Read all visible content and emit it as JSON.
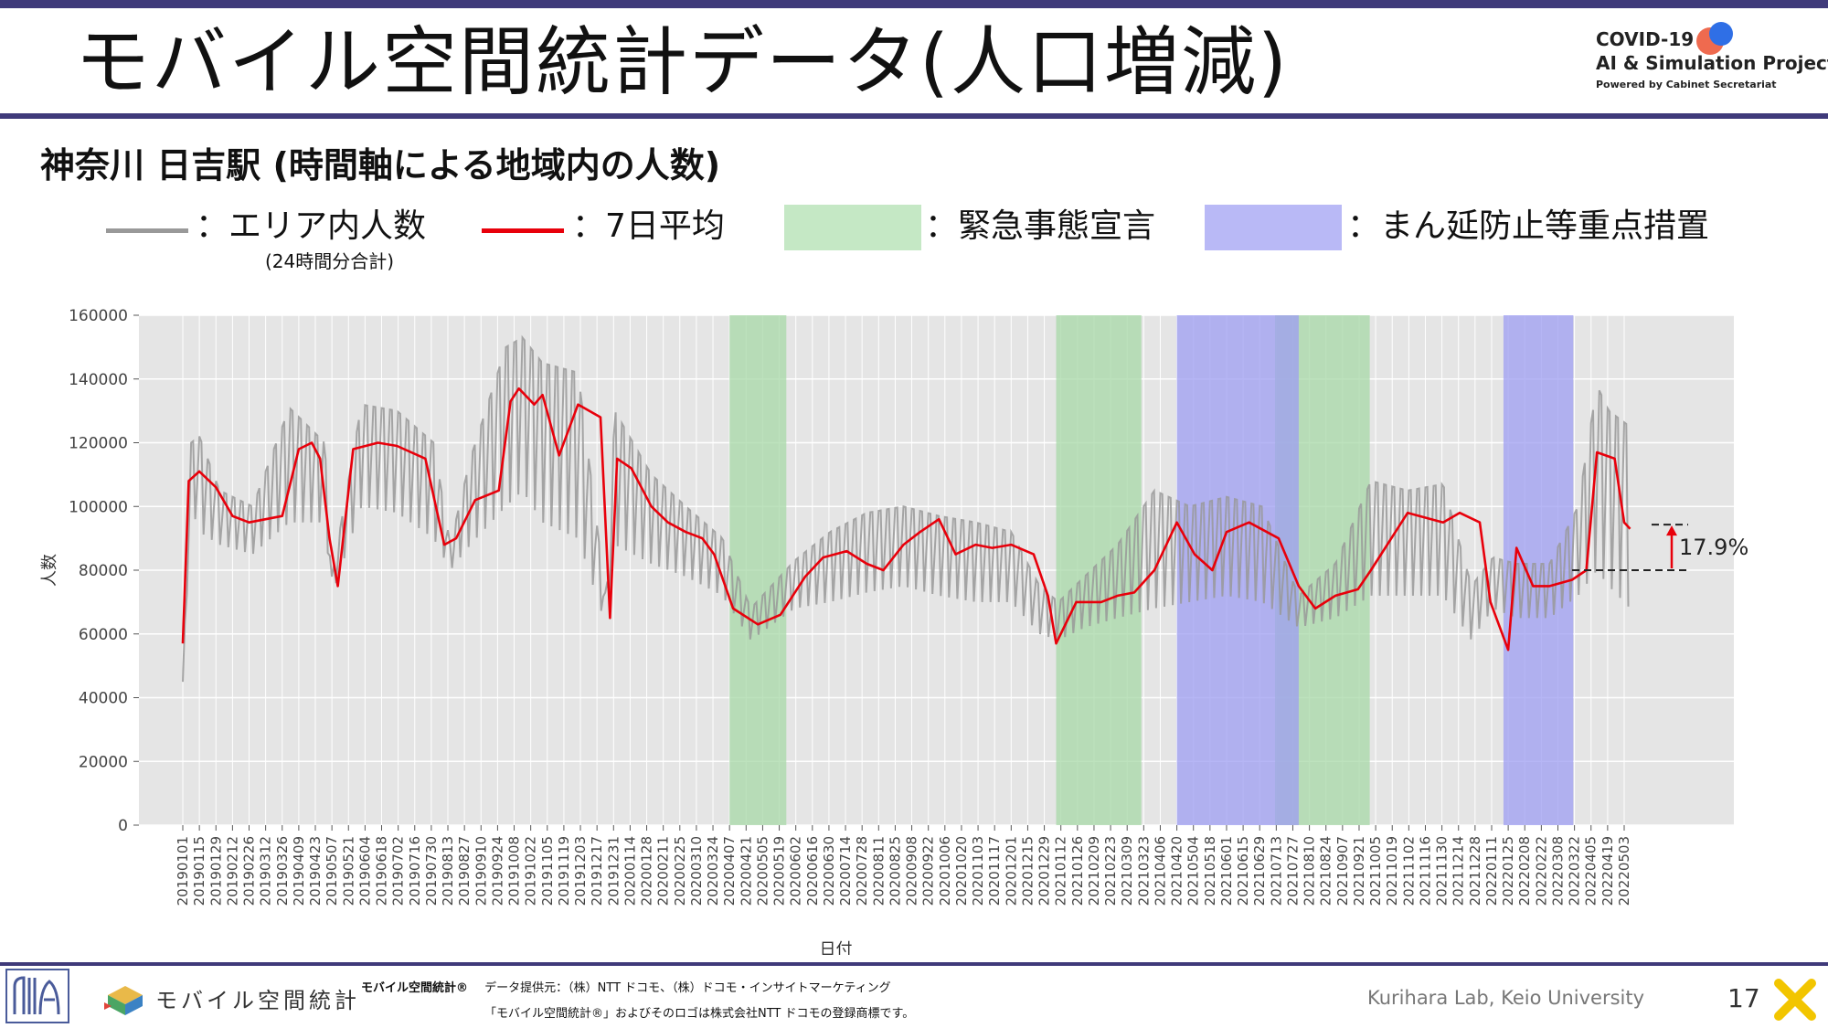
{
  "slide": {
    "title": "モバイル空間統計データ(人口増減)",
    "subtitle": "神奈川 日吉駅 (時間軸による地域内の人数)",
    "page_number": "17"
  },
  "logo": {
    "line1": "COVID-19",
    "line2": "AI & Simulation Project",
    "line3": "Powered by Cabinet Secretariat"
  },
  "legend": {
    "raw_label": "：エリア内人数",
    "raw_sublabel": "(24時間分合計)",
    "avg_label": "：7日平均",
    "emergency_label": "：緊急事態宣言",
    "semi_label": "：まん延防止等重点措置"
  },
  "footer": {
    "brand": "モバイル空間統計",
    "note_line1_bold": "モバイル空間統計®",
    "note_line1": "データ提供元：（株）NTT ドコモ、（株）ドコモ・インサイトマーケティング",
    "note_line2": "「モバイル空間統計®」およびそのロゴは株式会社NTT ドコモの登録商標です。",
    "lab": "Kurihara Lab, Keio University"
  },
  "colors": {
    "accent": "#3f3a7a",
    "raw_series": "#999999",
    "avg_series": "#e8000b",
    "emergency": "#a7d8a7",
    "semi": "#9e9ef2",
    "plot_bg": "#e5e5e5"
  },
  "chart_data": {
    "type": "line",
    "xlabel": "日付",
    "ylabel": "人数",
    "ylim": [
      0,
      160000
    ],
    "yticks": [
      0,
      20000,
      40000,
      60000,
      80000,
      100000,
      120000,
      140000,
      160000
    ],
    "ytick_labels": [
      "0",
      "20000",
      "40000",
      "60000",
      "80000",
      "100000",
      "120000",
      "140000",
      "160000"
    ],
    "x_start": "20190101",
    "x_end": "20220508",
    "x_tick_labels": [
      "20190101",
      "20190115",
      "20190129",
      "20190212",
      "20190226",
      "20190312",
      "20190326",
      "20190409",
      "20190423",
      "20190507",
      "20190521",
      "20190604",
      "20190618",
      "20190702",
      "20190716",
      "20190730",
      "20190813",
      "20190827",
      "20190910",
      "20190924",
      "20191008",
      "20191022",
      "20191105",
      "20191119",
      "20191203",
      "20191217",
      "20191231",
      "20200114",
      "20200128",
      "20200211",
      "20200225",
      "20200310",
      "20200324",
      "20200407",
      "20200421",
      "20200505",
      "20200519",
      "20200602",
      "20200616",
      "20200630",
      "20200714",
      "20200728",
      "20200811",
      "20200825",
      "20200908",
      "20200922",
      "20201006",
      "20201020",
      "20201103",
      "20201117",
      "20201201",
      "20201215",
      "20201229",
      "20210112",
      "20210126",
      "20210209",
      "20210223",
      "20210309",
      "20210323",
      "20210406",
      "20210420",
      "20210504",
      "20210518",
      "20210601",
      "20210615",
      "20210629",
      "20210713",
      "20210727",
      "20210810",
      "20210824",
      "20210907",
      "20210921",
      "20211005",
      "20211019",
      "20211102",
      "20211116",
      "20211130",
      "20211214",
      "20211228",
      "20220111",
      "20220125",
      "20220208",
      "20220222",
      "20220308",
      "20220322",
      "20220405",
      "20220419",
      "20220503"
    ],
    "emergency_periods": [
      [
        "20200407",
        "20200525"
      ],
      [
        "20210108",
        "20210321"
      ],
      [
        "20210712",
        "20210930"
      ]
    ],
    "semi_emergency_periods": [
      [
        "20210420",
        "20210801"
      ],
      [
        "20220121",
        "20220321"
      ]
    ],
    "series": [
      {
        "name": "エリア内人数",
        "style": "raw",
        "weekday_x": [
          "20190101",
          "20190108",
          "20190115",
          "20190201",
          "20190301",
          "20190401",
          "20190501",
          "20190507",
          "20190601",
          "20190701",
          "20190801",
          "20190815",
          "20190901",
          "20191001",
          "20191015",
          "20191101",
          "20191201",
          "20191225",
          "20200101",
          "20200201",
          "20200301",
          "20200401",
          "20200425",
          "20200601",
          "20200701",
          "20200801",
          "20200901",
          "20201001",
          "20201101",
          "20201201",
          "20201225",
          "20210110",
          "20210201",
          "20210301",
          "20210401",
          "20210501",
          "20210601",
          "20210701",
          "20210801",
          "20210901",
          "20211001",
          "20211101",
          "20211201",
          "20211225",
          "20220112",
          "20220201",
          "20220301",
          "20220325",
          "20220410",
          "20220420",
          "20220508"
        ],
        "weekday_high": [
          45000,
          120000,
          122000,
          105000,
          100000,
          131000,
          120000,
          78000,
          132000,
          130000,
          120000,
          88000,
          115000,
          150000,
          153000,
          145000,
          142000,
          70000,
          130000,
          110000,
          100000,
          90000,
          68000,
          83000,
          92000,
          98000,
          100000,
          97000,
          95000,
          92000,
          75000,
          70000,
          78000,
          88000,
          105000,
          100000,
          103000,
          100000,
          72000,
          82000,
          108000,
          105000,
          107000,
          75000,
          84000,
          82000,
          82000,
          100000,
          138000,
          130000,
          125000
        ],
        "weekend_low": [
          45000,
          100000,
          92000,
          88000,
          85000,
          95000,
          95000,
          72000,
          100000,
          98000,
          90000,
          80000,
          88000,
          100000,
          105000,
          95000,
          90000,
          62000,
          88000,
          82000,
          78000,
          72000,
          58000,
          68000,
          70000,
          73000,
          75000,
          72000,
          70000,
          70000,
          60000,
          58000,
          62000,
          65000,
          68000,
          70000,
          72000,
          70000,
          62000,
          65000,
          72000,
          72000,
          72000,
          58000,
          68000,
          65000,
          65000,
          72000,
          80000,
          75000,
          68000
        ]
      },
      {
        "name": "7日平均",
        "style": "avg",
        "x": [
          "20190101",
          "20190106",
          "20190115",
          "20190129",
          "20190212",
          "20190226",
          "20190312",
          "20190326",
          "20190409",
          "20190420",
          "20190427",
          "20190505",
          "20190512",
          "20190525",
          "20190615",
          "20190701",
          "20190725",
          "20190810",
          "20190820",
          "20190905",
          "20190925",
          "20191005",
          "20191012",
          "20191025",
          "20191101",
          "20191115",
          "20191201",
          "20191220",
          "20191228",
          "20200103",
          "20200115",
          "20200201",
          "20200215",
          "20200301",
          "20200315",
          "20200325",
          "20200410",
          "20200501",
          "20200520",
          "20200610",
          "20200625",
          "20200715",
          "20200801",
          "20200815",
          "20200901",
          "20200915",
          "20201001",
          "20201015",
          "20201101",
          "20201115",
          "20201201",
          "20201220",
          "20210101",
          "20210108",
          "20210125",
          "20210215",
          "20210301",
          "20210315",
          "20210401",
          "20210420",
          "20210505",
          "20210520",
          "20210601",
          "20210620",
          "20210715",
          "20210801",
          "20210815",
          "20210901",
          "20210920",
          "20211001",
          "20211101",
          "20211201",
          "20211215",
          "20220101",
          "20220110",
          "20220125",
          "20220201",
          "20220215",
          "20220301",
          "20220320",
          "20220401",
          "20220410",
          "20220425",
          "20220503",
          "20220508"
        ],
        "y": [
          57000,
          108000,
          111000,
          106000,
          97000,
          95000,
          96000,
          97000,
          118000,
          120000,
          115000,
          90000,
          75000,
          118000,
          120000,
          119000,
          115000,
          88000,
          90000,
          102000,
          105000,
          133000,
          137000,
          132000,
          135000,
          116000,
          132000,
          128000,
          65000,
          115000,
          112000,
          100000,
          95000,
          92000,
          90000,
          85000,
          68000,
          63000,
          66000,
          78000,
          84000,
          86000,
          82000,
          80000,
          88000,
          92000,
          96000,
          85000,
          88000,
          87000,
          88000,
          85000,
          72000,
          57000,
          70000,
          70000,
          72000,
          73000,
          80000,
          95000,
          85000,
          80000,
          92000,
          95000,
          90000,
          75000,
          68000,
          72000,
          74000,
          80000,
          98000,
          95000,
          98000,
          95000,
          70000,
          55000,
          87000,
          75000,
          75000,
          77000,
          80000,
          117000,
          115000,
          95000,
          93000
        ]
      }
    ],
    "annotations": [
      {
        "text": "17.9%",
        "from": 80000,
        "to": 94300
      }
    ]
  }
}
